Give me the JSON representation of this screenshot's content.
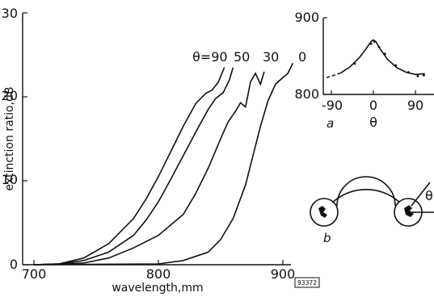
{
  "chart_data": [
    {
      "type": "line",
      "title": "",
      "xlabel": "wavelength,mm",
      "ylabel": "extinction ratio,dB",
      "xlim": [
        695,
        912
      ],
      "ylim": [
        0,
        30
      ],
      "xticks": [
        "700",
        "800",
        "900"
      ],
      "yticks": [
        "0",
        "10",
        "20",
        "30"
      ],
      "grid": false,
      "legend": "none",
      "series": [
        {
          "name": "θ=90",
          "x": [
            700,
            720,
            740,
            760,
            780,
            790,
            800,
            810,
            820,
            830,
            838,
            843,
            848,
            853
          ],
          "y": [
            0,
            0.1,
            0.8,
            2.5,
            5.5,
            7.8,
            10.5,
            13.5,
            16.5,
            19.2,
            20.4,
            20.8,
            21.7,
            23.5
          ]
        },
        {
          "name": "50",
          "x": [
            700,
            720,
            740,
            760,
            780,
            790,
            800,
            810,
            820,
            830,
            840,
            846,
            852,
            857,
            860
          ],
          "y": [
            0,
            0.1,
            0.5,
            1.5,
            3.5,
            5.3,
            7.5,
            10.2,
            13.0,
            15.8,
            18.5,
            19.8,
            20.5,
            22.0,
            23.5
          ]
        },
        {
          "name": "30",
          "x": [
            700,
            740,
            760,
            780,
            800,
            820,
            830,
            840,
            850,
            856,
            862,
            866,
            870,
            874,
            878,
            882,
            885
          ],
          "y": [
            0,
            0.2,
            0.8,
            2.0,
            3.5,
            6.0,
            8.5,
            11.5,
            15.0,
            17.0,
            18.3,
            19.3,
            18.8,
            21.8,
            22.8,
            21.5,
            23.0
          ]
        },
        {
          "name": "0",
          "x": [
            700,
            800,
            820,
            840,
            850,
            860,
            870,
            876,
            882,
            888,
            894,
            900,
            904,
            908
          ],
          "y": [
            0,
            0.1,
            0.5,
            1.5,
            3.0,
            5.5,
            9.5,
            13.0,
            16.5,
            19.5,
            21.5,
            22.3,
            22.8,
            24.0
          ]
        }
      ],
      "curve_labels": [
        "θ=90",
        "50",
        "30",
        "0"
      ]
    },
    {
      "type": "line",
      "panel_label": "a",
      "xlabel": "θ",
      "ylabel": "",
      "xlim": [
        -100,
        110
      ],
      "ylim": [
        800,
        900
      ],
      "xticks": [
        "-90",
        "0",
        "90"
      ],
      "yticks": [
        "800",
        "900"
      ],
      "series": [
        {
          "name": "",
          "style": "solid",
          "x": [
            -70,
            -50,
            -30,
            -15,
            -5,
            0,
            5,
            15,
            30,
            50,
            70,
            90,
            110
          ],
          "y": [
            828,
            836,
            848,
            860,
            869,
            871,
            869,
            859,
            846,
            835,
            829,
            826,
            827
          ]
        },
        {
          "name": "",
          "style": "dashed",
          "x": [
            -100,
            -85,
            -70
          ],
          "y": [
            822,
            825,
            828
          ]
        }
      ],
      "points": {
        "x": [
          -40,
          -5,
          2,
          12,
          25,
          48,
          75,
          95,
          108
        ],
        "y": [
          840,
          866,
          869,
          862,
          853,
          838,
          829,
          824,
          825
        ]
      }
    }
  ],
  "diagram": {
    "panel_label": "b",
    "angle_label": "θ"
  },
  "figure_id": "93372"
}
